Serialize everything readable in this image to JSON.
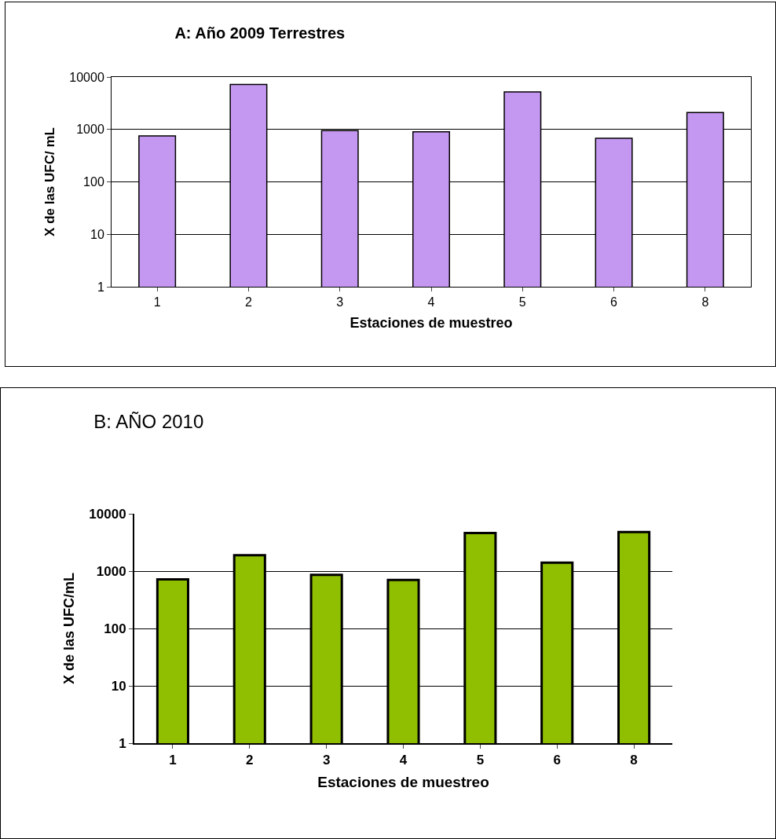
{
  "chart_data": [
    {
      "type": "bar",
      "title": "A: Año 2009 Terrestres",
      "xlabel": "Estaciones de muestreo",
      "ylabel": "X de las UFC/ mL",
      "categories": [
        "1",
        "2",
        "3",
        "4",
        "5",
        "6",
        "8"
      ],
      "values": [
        750,
        7200,
        950,
        900,
        5200,
        680,
        2100
      ],
      "color": "#c497f0",
      "log": true,
      "ylim": [
        1,
        10000
      ],
      "yticks": [
        1,
        10,
        100,
        1000,
        10000
      ],
      "grid": "y"
    },
    {
      "type": "bar",
      "title": "B: AÑO 2010",
      "xlabel": "Estaciones de muestreo",
      "ylabel": "X de las UFC/mL",
      "categories": [
        "1",
        "2",
        "3",
        "4",
        "5",
        "6",
        "8"
      ],
      "values": [
        720,
        1900,
        860,
        700,
        4600,
        1400,
        4800
      ],
      "color": "#8fbf00",
      "log": true,
      "ylim": [
        1,
        10000
      ],
      "yticks": [
        1,
        10,
        100,
        1000,
        10000
      ],
      "grid": "y"
    }
  ]
}
